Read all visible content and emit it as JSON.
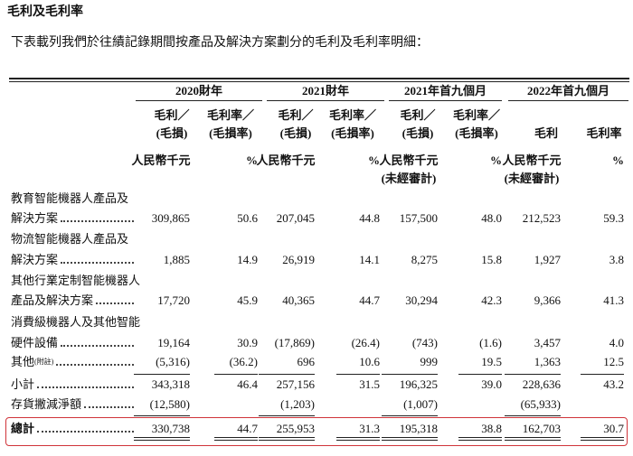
{
  "title": "毛利及毛利率",
  "intro": "下表載列我們於往績記錄期間按產品及解決方案劃分的毛利及毛利率明細：",
  "table": {
    "groups": [
      "2020財年",
      "2021財年",
      "2021年首九個月",
      "2022年首九個月"
    ],
    "subheaders": [
      [
        "毛利／",
        "(毛損)"
      ],
      [
        "毛利率／",
        "(毛損率)"
      ],
      [
        "毛利／",
        "(毛損)"
      ],
      [
        "毛利率／",
        "(毛損率)"
      ],
      [
        "毛利／",
        "(毛損)"
      ],
      [
        "毛利率／",
        "(毛損率)"
      ],
      [
        "毛利"
      ],
      [
        "毛利率"
      ]
    ],
    "units": [
      [
        "人民幣千元"
      ],
      [
        "%"
      ],
      [
        "人民幣千元"
      ],
      [
        "%"
      ],
      [
        "人民幣千元",
        "(未經審計)"
      ],
      [
        "%"
      ],
      [
        "人民幣千元",
        "(未經審計)"
      ],
      [
        "%"
      ]
    ],
    "rows": [
      {
        "label": [
          "教育智能機器人產品及",
          "解決方案"
        ],
        "values": [
          "309,865",
          "50.6",
          "207,045",
          "44.8",
          "157,500",
          "48.0",
          "212,523",
          "59.3"
        ]
      },
      {
        "label": [
          "物流智能機器人產品及",
          "解決方案"
        ],
        "values": [
          "1,885",
          "14.9",
          "26,919",
          "14.1",
          "8,275",
          "15.8",
          "1,927",
          "3.8"
        ]
      },
      {
        "label": [
          "其他行業定制智能機器人",
          "產品及解決方案"
        ],
        "values": [
          "17,720",
          "45.9",
          "40,365",
          "44.7",
          "30,294",
          "42.3",
          "9,366",
          "41.3"
        ]
      },
      {
        "label": [
          "消費級機器人及其他智能",
          "硬件設備"
        ],
        "values": [
          "19,164",
          "30.9",
          "(17,869)",
          "(26.4)",
          "(743)",
          "(1.6)",
          "3,457",
          "4.0"
        ]
      },
      {
        "label": [
          "其他"
        ],
        "note": "(附註)",
        "values": [
          "(5,316)",
          "(36.2)",
          "696",
          "10.6",
          "999",
          "19.5",
          "1,363",
          "12.5"
        ]
      },
      {
        "label": [
          "小計"
        ],
        "values": [
          "343,318",
          "46.4",
          "257,156",
          "31.5",
          "196,325",
          "39.0",
          "228,636",
          "43.2"
        ]
      },
      {
        "label": [
          "存貨撇減淨額"
        ],
        "values": [
          "(12,580)",
          null,
          "(1,203)",
          null,
          "(1,007)",
          null,
          "(65,933)",
          null
        ]
      },
      {
        "label": [
          "總計"
        ],
        "values": [
          "330,738",
          "44.7",
          "255,953",
          "31.3",
          "195,318",
          "38.8",
          "162,703",
          "30.7"
        ]
      }
    ]
  }
}
